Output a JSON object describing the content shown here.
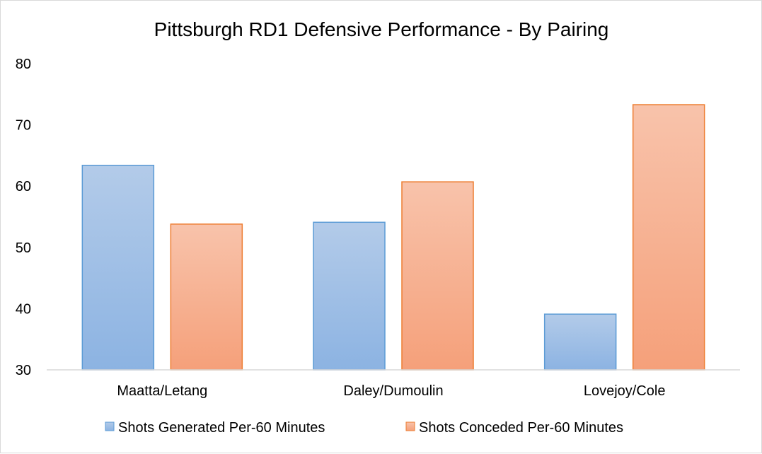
{
  "chart_data": {
    "type": "bar",
    "title": "Pittsburgh RD1 Defensive Performance - By Pairing",
    "categories": [
      "Maatta/Letang",
      "Daley/Dumoulin",
      "Lovejoy/Cole"
    ],
    "series": [
      {
        "name": "Shots Generated Per-60 Minutes",
        "values": [
          63.4,
          54.1,
          39.1
        ],
        "color_top": "#b3cbe9",
        "color_bottom": "#8cb3e2",
        "stroke": "#5b9bd5"
      },
      {
        "name": "Shots Conceded Per-60 Minutes",
        "values": [
          53.8,
          60.7,
          73.3
        ],
        "color_top": "#f8c3ab",
        "color_bottom": "#f5a07a",
        "stroke": "#ed7d31"
      }
    ],
    "ylim": [
      30,
      80
    ],
    "yticks": [
      "30",
      "40",
      "50",
      "60",
      "70",
      "80"
    ],
    "grid": false,
    "legend": "bottom"
  }
}
